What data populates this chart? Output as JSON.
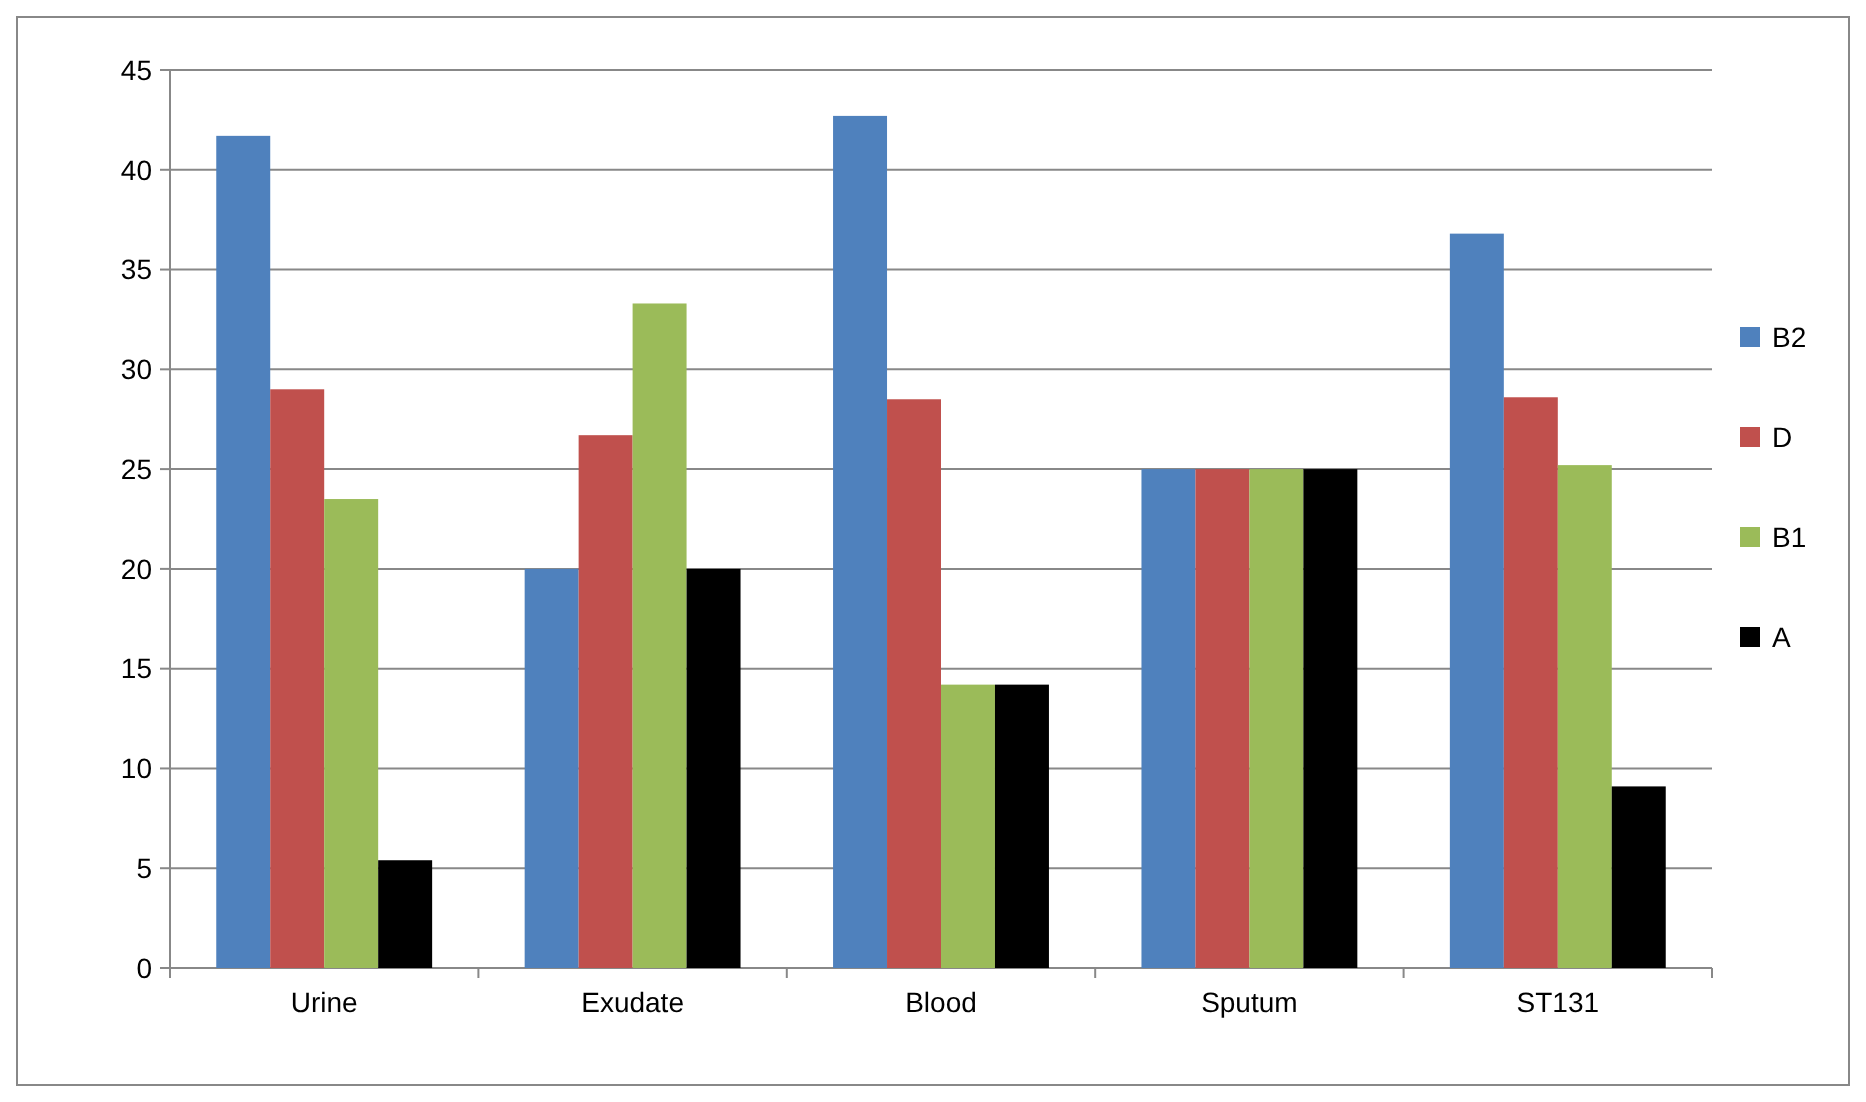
{
  "chart_data": {
    "type": "bar",
    "categories": [
      "Urine",
      "Exudate",
      "Blood",
      "Sputum",
      "ST131"
    ],
    "series": [
      {
        "name": "B2",
        "color": "#4f81bd",
        "values": [
          41.7,
          20,
          42.7,
          25,
          36.8
        ]
      },
      {
        "name": "D",
        "color": "#c0504d",
        "values": [
          29,
          26.7,
          28.5,
          25,
          28.6
        ]
      },
      {
        "name": "B1",
        "color": "#9bbb59",
        "values": [
          23.5,
          33.3,
          14.2,
          25,
          25.2
        ]
      },
      {
        "name": "A",
        "color": "#000000",
        "values": [
          5.4,
          20,
          14.2,
          25,
          9.1
        ]
      }
    ],
    "ylim": [
      0,
      45
    ],
    "yticks": [
      0,
      5,
      10,
      15,
      20,
      25,
      30,
      35,
      40,
      45
    ],
    "grid": "y",
    "legend": "right"
  }
}
